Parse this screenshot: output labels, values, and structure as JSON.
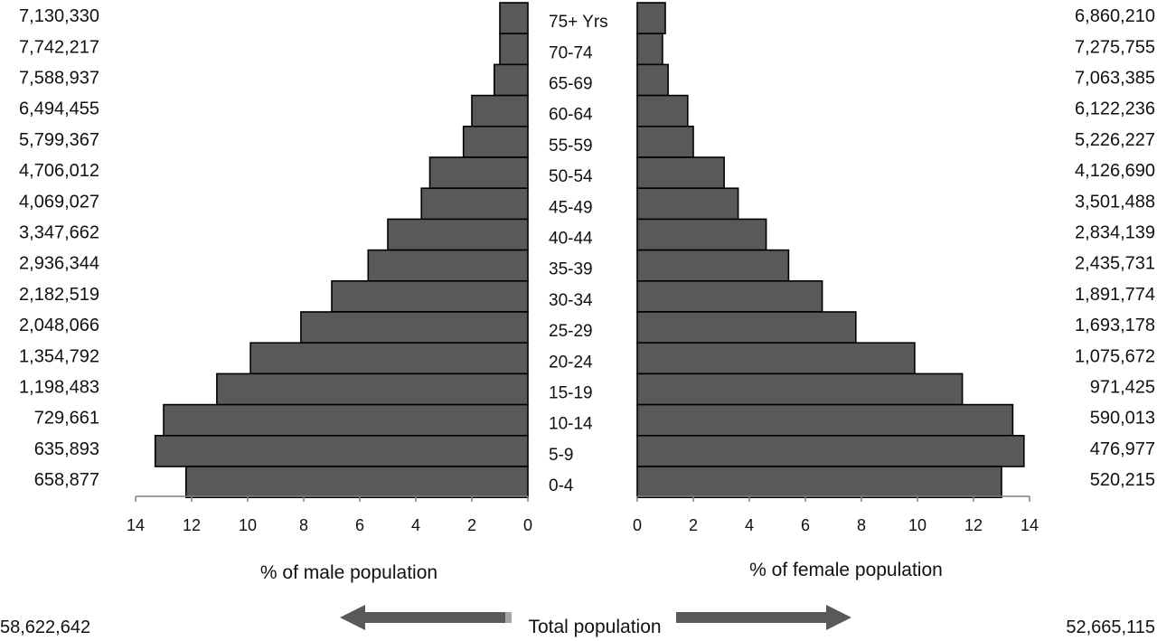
{
  "chart_data": {
    "type": "bar",
    "subtype": "population-pyramid",
    "categories": [
      "75+ Yrs",
      "70-74",
      "65-69",
      "60-64",
      "55-59",
      "50-54",
      "45-49",
      "40-44",
      "35-39",
      "30-34",
      "25-29",
      "20-24",
      "15-19",
      "10-14",
      "5-9",
      "0-4"
    ],
    "series": [
      {
        "side": "left",
        "values": [
          1.0,
          1.0,
          1.2,
          2.0,
          2.3,
          3.5,
          3.8,
          5.0,
          5.7,
          7.0,
          8.1,
          9.9,
          11.1,
          13.0,
          13.3,
          12.2
        ],
        "counts": [
          "7,130,330",
          "7,742,217",
          "7,588,937",
          "6,494,455",
          "5,799,367",
          "4,706,012",
          "4,069,027",
          "3,347,662",
          "2,936,344",
          "2,182,519",
          "2,048,066",
          "1,354,792",
          "1,198,483",
          "729,661",
          "635,893",
          "658,877"
        ]
      },
      {
        "side": "right",
        "values": [
          1.0,
          0.9,
          1.1,
          1.8,
          2.0,
          3.1,
          3.6,
          4.6,
          5.4,
          6.6,
          7.8,
          9.9,
          11.6,
          13.4,
          13.8,
          13.0
        ],
        "counts": [
          "6,860,210",
          "7,275,755",
          "7,063,385",
          "6,122,236",
          "5,226,227",
          "4,126,690",
          "3,501,488",
          "2,834,139",
          "2,435,731",
          "1,891,774",
          "1,693,178",
          "1,075,672",
          "971,425",
          "590,013",
          "476,977",
          "520,215"
        ]
      }
    ],
    "xlabel_left": "% of male population",
    "xlabel_right": "% of female population",
    "xlim": [
      0,
      14
    ],
    "xticks_left": [
      "14",
      "12",
      "10",
      "8",
      "6",
      "4",
      "2",
      "0"
    ],
    "xticks_right": [
      "0",
      "2",
      "4",
      "6",
      "8",
      "10",
      "12",
      "14"
    ],
    "grid": false,
    "bar_color": "#595959"
  },
  "footer": {
    "label": "Total population",
    "left_total": "58,622,642",
    "right_total": "52,665,115",
    "arrow_color": "#595959"
  }
}
